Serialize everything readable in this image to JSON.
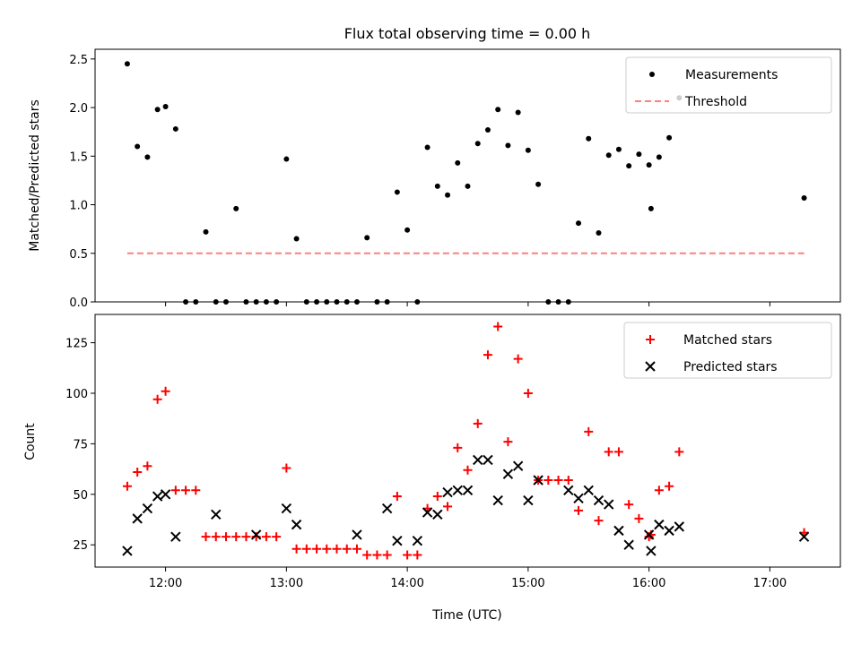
{
  "chart_data": [
    {
      "type": "scatter",
      "title": "Flux total observing time = 0.00 h",
      "xlabel": "",
      "ylabel": "Matched/Predicted stars",
      "xlim": [
        "11:25",
        "17:35"
      ],
      "ylim": [
        0,
        2.6
      ],
      "yticks": [
        0.0,
        0.5,
        1.0,
        1.5,
        2.0,
        2.5
      ],
      "ytick_labels": [
        "0.0",
        "0.5",
        "1.0",
        "1.5",
        "2.0",
        "2.5"
      ],
      "xticks": [
        "12:00",
        "13:00",
        "14:00",
        "15:00",
        "16:00",
        "17:00"
      ],
      "grid": false,
      "legend": "top-right",
      "series": [
        {
          "name": "Measurements",
          "kind": "points",
          "color": "#000000",
          "x": [
            "11:41",
            "11:46",
            "11:51",
            "11:56",
            "12:00",
            "12:05",
            "12:10",
            "12:15",
            "12:20",
            "12:25",
            "12:30",
            "12:35",
            "12:40",
            "12:45",
            "12:50",
            "12:55",
            "13:00",
            "13:05",
            "13:10",
            "13:15",
            "13:20",
            "13:25",
            "13:30",
            "13:35",
            "13:40",
            "13:45",
            "13:50",
            "13:55",
            "14:00",
            "14:05",
            "14:10",
            "14:15",
            "14:20",
            "14:25",
            "14:30",
            "14:35",
            "14:40",
            "14:45",
            "14:50",
            "14:55",
            "15:00",
            "15:05",
            "15:10",
            "15:15",
            "15:20",
            "15:25",
            "15:30",
            "15:35",
            "15:40",
            "15:45",
            "15:50",
            "15:55",
            "16:00",
            "16:01",
            "16:05",
            "16:10",
            "16:15",
            "17:17"
          ],
          "y": [
            2.45,
            1.6,
            1.49,
            1.98,
            2.01,
            1.78,
            0,
            0,
            0.72,
            0,
            0,
            0.96,
            0,
            0,
            0,
            0,
            1.47,
            0.65,
            0,
            0,
            0,
            0,
            0,
            0,
            0.66,
            0,
            0,
            1.13,
            0.74,
            0,
            1.59,
            1.19,
            1.1,
            1.43,
            1.19,
            1.63,
            1.77,
            1.98,
            1.61,
            1.95,
            1.56,
            1.21,
            0,
            0,
            0,
            0.81,
            1.68,
            0.71,
            1.51,
            1.57,
            1.4,
            1.52,
            1.41,
            0.96,
            1.49,
            1.69,
            2.1,
            1.07
          ]
        },
        {
          "name": "Threshold",
          "kind": "dashed-line",
          "color": "#ff7f7f",
          "x": [
            "11:41",
            "17:17"
          ],
          "y": [
            0.5,
            0.5
          ]
        }
      ]
    },
    {
      "type": "scatter",
      "title": "",
      "xlabel": "Time (UTC)",
      "ylabel": "Count",
      "xlim": [
        "11:25",
        "17:35"
      ],
      "ylim": [
        14,
        139
      ],
      "yticks": [
        25,
        50,
        75,
        100,
        125
      ],
      "ytick_labels": [
        "25",
        "50",
        "75",
        "100",
        "125"
      ],
      "xticks": [
        "12:00",
        "13:00",
        "14:00",
        "15:00",
        "16:00",
        "17:00"
      ],
      "xtick_labels": [
        "12:00",
        "13:00",
        "14:00",
        "15:00",
        "16:00",
        "17:00"
      ],
      "grid": false,
      "legend": "top-right",
      "series": [
        {
          "name": "Matched stars",
          "marker": "plus",
          "color": "#ff0000",
          "x": [
            "11:41",
            "11:46",
            "11:51",
            "11:56",
            "12:00",
            "12:05",
            "12:10",
            "12:15",
            "12:20",
            "12:25",
            "12:30",
            "12:35",
            "12:40",
            "12:45",
            "12:50",
            "12:55",
            "13:00",
            "13:05",
            "13:10",
            "13:15",
            "13:20",
            "13:25",
            "13:30",
            "13:35",
            "13:40",
            "13:45",
            "13:50",
            "13:55",
            "14:00",
            "14:05",
            "14:10",
            "14:15",
            "14:20",
            "14:25",
            "14:30",
            "14:35",
            "14:40",
            "14:45",
            "14:50",
            "14:55",
            "15:00",
            "15:05",
            "15:10",
            "15:15",
            "15:20",
            "15:25",
            "15:30",
            "15:35",
            "15:40",
            "15:45",
            "15:50",
            "15:55",
            "16:00",
            "16:01",
            "16:05",
            "16:10",
            "16:15",
            "17:17"
          ],
          "y": [
            54,
            61,
            64,
            97,
            101,
            52,
            52,
            52,
            29,
            29,
            29,
            29,
            29,
            29,
            29,
            29,
            63,
            23,
            23,
            23,
            23,
            23,
            23,
            23,
            20,
            20,
            20,
            49,
            20,
            20,
            43,
            49,
            44,
            73,
            62,
            85,
            119,
            133,
            76,
            117,
            100,
            57,
            57,
            57,
            57,
            42,
            81,
            37,
            71,
            71,
            45,
            38,
            29,
            30,
            52,
            54,
            71,
            31
          ]
        },
        {
          "name": "Predicted stars",
          "marker": "x",
          "color": "#000000",
          "x": [
            "11:41",
            "11:46",
            "11:51",
            "11:56",
            "12:00",
            "12:05",
            "12:25",
            "12:45",
            "13:00",
            "13:05",
            "13:35",
            "13:50",
            "13:55",
            "14:05",
            "14:10",
            "14:15",
            "14:20",
            "14:25",
            "14:30",
            "14:35",
            "14:40",
            "14:45",
            "14:50",
            "14:55",
            "15:00",
            "15:05",
            "15:20",
            "15:25",
            "15:30",
            "15:35",
            "15:40",
            "15:45",
            "15:50",
            "16:00",
            "16:01",
            "16:05",
            "16:10",
            "16:15",
            "17:17"
          ],
          "y": [
            22,
            38,
            43,
            49,
            50,
            29,
            40,
            30,
            43,
            35,
            30,
            43,
            27,
            27,
            41,
            40,
            51,
            52,
            52,
            67,
            67,
            47,
            60,
            64,
            47,
            57,
            52,
            48,
            52,
            47,
            45,
            32,
            25,
            30,
            22,
            35,
            32,
            34,
            29
          ]
        }
      ]
    }
  ]
}
